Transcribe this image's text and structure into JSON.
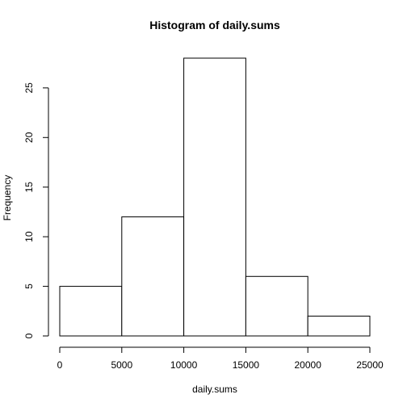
{
  "chart_data": {
    "type": "bar",
    "title": "Histogram of daily.sums",
    "xlabel": "daily.sums",
    "ylabel": "Frequency",
    "bins": [
      {
        "start": 0,
        "end": 5000,
        "count": 5
      },
      {
        "start": 5000,
        "end": 10000,
        "count": 12
      },
      {
        "start": 10000,
        "end": 15000,
        "count": 28
      },
      {
        "start": 15000,
        "end": 20000,
        "count": 6
      },
      {
        "start": 20000,
        "end": 25000,
        "count": 2
      }
    ],
    "xlim": [
      0,
      25000
    ],
    "ylim": [
      0,
      28
    ],
    "xticks": [
      0,
      5000,
      10000,
      15000,
      20000,
      25000
    ],
    "yticks": [
      0,
      5,
      10,
      15,
      20,
      25
    ],
    "grid": false
  }
}
